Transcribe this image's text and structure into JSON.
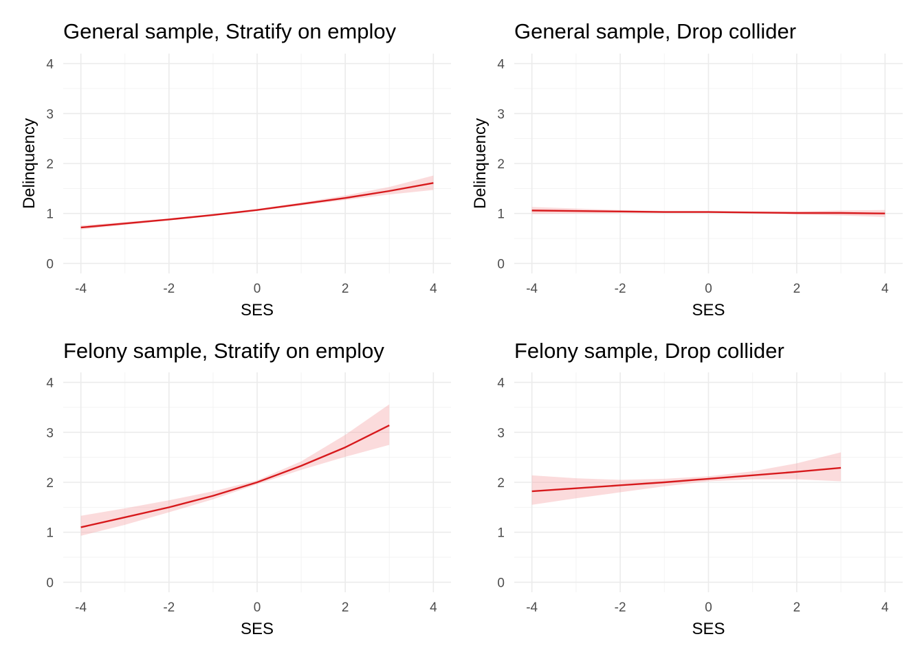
{
  "colors": {
    "line": "#d7191c",
    "band": "#f4a6a8"
  },
  "chart_data": [
    {
      "type": "line",
      "title": "General sample, Stratify on employ",
      "xlabel": "SES",
      "ylabel": "Delinquency",
      "xlim": [
        -4.4,
        4.4
      ],
      "ylim": [
        -0.2,
        4.2
      ],
      "xticks": [
        "-4",
        "-2",
        "0",
        "2",
        "4"
      ],
      "yticks": [
        "0",
        "1",
        "2",
        "3",
        "4"
      ],
      "grid": true,
      "series": [
        {
          "x": [
            -4,
            -3,
            -2,
            -1,
            0,
            1,
            2,
            3,
            4
          ],
          "y": [
            0.72,
            0.8,
            0.88,
            0.97,
            1.07,
            1.19,
            1.31,
            1.45,
            1.61
          ],
          "lower": [
            0.68,
            0.77,
            0.86,
            0.95,
            1.05,
            1.16,
            1.27,
            1.38,
            1.47
          ],
          "upper": [
            0.76,
            0.83,
            0.9,
            0.99,
            1.09,
            1.22,
            1.36,
            1.53,
            1.76
          ]
        }
      ]
    },
    {
      "type": "line",
      "title": "General sample, Drop collider",
      "xlabel": "SES",
      "ylabel": "Delinquency",
      "xlim": [
        -4.4,
        4.4
      ],
      "ylim": [
        -0.2,
        4.2
      ],
      "xticks": [
        "-4",
        "-2",
        "0",
        "2",
        "4"
      ],
      "yticks": [
        "0",
        "1",
        "2",
        "3",
        "4"
      ],
      "grid": true,
      "series": [
        {
          "x": [
            -4,
            -3,
            -2,
            -1,
            0,
            1,
            2,
            3,
            4
          ],
          "y": [
            1.06,
            1.05,
            1.04,
            1.03,
            1.03,
            1.02,
            1.01,
            1.01,
            1.0
          ],
          "lower": [
            0.99,
            1.0,
            1.01,
            1.01,
            1.01,
            1.0,
            0.98,
            0.96,
            0.93
          ],
          "upper": [
            1.13,
            1.1,
            1.07,
            1.05,
            1.05,
            1.04,
            1.04,
            1.06,
            1.07
          ]
        }
      ]
    },
    {
      "type": "line",
      "title": "Felony sample, Stratify on employ",
      "xlabel": "SES",
      "ylabel": "",
      "xlim": [
        -4.4,
        4.4
      ],
      "ylim": [
        -0.2,
        4.2
      ],
      "xticks": [
        "-4",
        "-2",
        "0",
        "2",
        "4"
      ],
      "yticks": [
        "0",
        "1",
        "2",
        "3",
        "4"
      ],
      "grid": true,
      "series": [
        {
          "x": [
            -4,
            -3,
            -2,
            -1,
            0,
            1,
            2,
            3
          ],
          "y": [
            1.1,
            1.3,
            1.5,
            1.73,
            2.0,
            2.33,
            2.7,
            3.14
          ],
          "lower": [
            0.93,
            1.15,
            1.4,
            1.66,
            1.96,
            2.25,
            2.51,
            2.75
          ],
          "upper": [
            1.33,
            1.48,
            1.64,
            1.82,
            2.04,
            2.42,
            2.95,
            3.56
          ]
        }
      ]
    },
    {
      "type": "line",
      "title": "Felony sample, Drop collider",
      "xlabel": "SES",
      "ylabel": "",
      "xlim": [
        -4.4,
        4.4
      ],
      "ylim": [
        -0.2,
        4.2
      ],
      "xticks": [
        "-4",
        "-2",
        "0",
        "2",
        "4"
      ],
      "yticks": [
        "0",
        "1",
        "2",
        "3",
        "4"
      ],
      "grid": true,
      "series": [
        {
          "x": [
            -4,
            -3,
            -2,
            -1,
            0,
            1,
            2,
            3
          ],
          "y": [
            1.82,
            1.88,
            1.94,
            2.0,
            2.07,
            2.14,
            2.21,
            2.29
          ],
          "lower": [
            1.55,
            1.68,
            1.8,
            1.92,
            2.02,
            2.06,
            2.06,
            2.02
          ],
          "upper": [
            2.14,
            2.08,
            2.05,
            2.07,
            2.12,
            2.22,
            2.38,
            2.6
          ]
        }
      ]
    }
  ]
}
